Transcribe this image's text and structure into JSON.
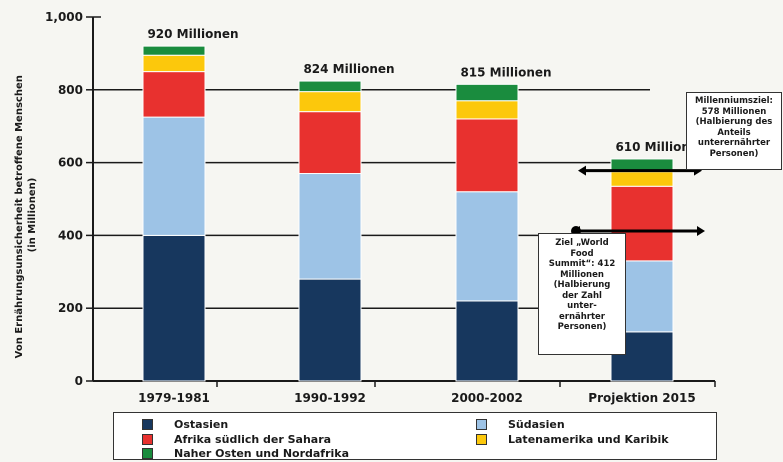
{
  "chart_data": {
    "type": "bar",
    "stacked": true,
    "categories": [
      "1979-1981",
      "1990-1992",
      "2000-2002",
      "Projektion 2015"
    ],
    "ylabel": "Von Ernährungsunsicherheit betroffene Menschen (in Millionen)",
    "ylim": [
      0,
      1000
    ],
    "yticks": [
      "0",
      "200",
      "400",
      "600",
      "800",
      "1,000"
    ],
    "grid": true,
    "series": [
      {
        "name": "Ostasien",
        "color": "#17375e",
        "values": [
          400,
          280,
          220,
          135
        ]
      },
      {
        "name": "Südasien",
        "color": "#9dc3e6",
        "values": [
          325,
          290,
          300,
          195
        ]
      },
      {
        "name": "Afrika südlich der Sahara",
        "color": "#e8312f",
        "values": [
          125,
          170,
          200,
          205
        ]
      },
      {
        "name": "Latenamerika und Karibik",
        "color": "#fcc80c",
        "values": [
          45,
          55,
          50,
          40
        ]
      },
      {
        "name": "Naher Osten und Nordafrika",
        "color": "#1a8c3e",
        "values": [
          25,
          29,
          45,
          35
        ]
      }
    ],
    "totals": [
      "920 Millionen",
      "824 Millionen",
      "815 Millionen",
      "610 Millionen"
    ],
    "targets": [
      {
        "value": 578,
        "label": "Millenniumsziel: 578 Millionen (Halbierung des Anteils unterernährter Personen)"
      },
      {
        "value": 412,
        "label": "Ziel „World Food Summit“: 412 Millionen (Halbierung der Zahl unter-ernährter Personen)"
      }
    ],
    "legend": {
      "position": "bottom",
      "items": [
        {
          "label": "Ostasien",
          "color": "#17375e"
        },
        {
          "label": "Südasien",
          "color": "#9dc3e6"
        },
        {
          "label": "Afrika südlich der Sahara",
          "color": "#e8312f"
        },
        {
          "label": "Latenamerika und Karibik",
          "color": "#fcc80c"
        },
        {
          "label": "Naher Osten und Nordafrika",
          "color": "#1a8c3e"
        }
      ]
    }
  },
  "annotations": {
    "ylabel_line1": "Von Ernährungsunsicherheit betroffene Menschen",
    "ylabel_line2": "(in Millionen)",
    "millennium_box": "Millenniumsziel:\n578 Millionen\n(Halbierung des\nAnteils\nunterernährter\nPersonen)",
    "wfs_box": "Ziel „World\nFood\nSummit“: 412\nMillionen\n(Halbierung\nder Zahl\nunter-\nernährter\nPersonen)"
  }
}
